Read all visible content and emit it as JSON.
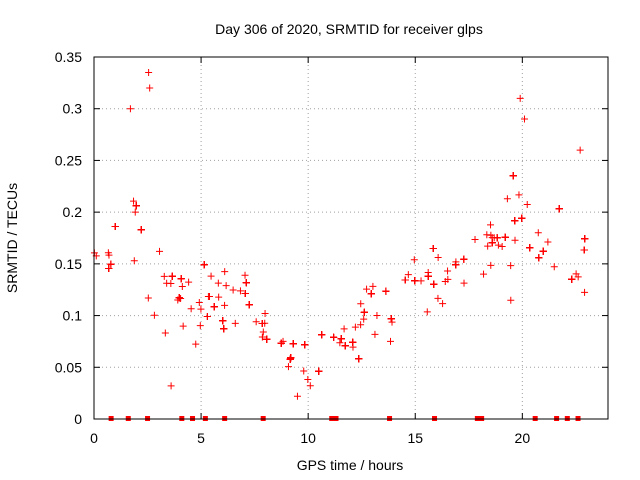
{
  "chart_data": {
    "type": "scatter",
    "title": "Day 306 of 2020, SRMTID for receiver glps",
    "xlabel": "GPS time / hours",
    "ylabel": "SRMTID / TECUs",
    "xlim": [
      0,
      24
    ],
    "ylim": [
      0,
      0.35
    ],
    "xticks": [
      0,
      5,
      10,
      15,
      20
    ],
    "xtick_labels": [
      "0",
      "5",
      "10",
      "15",
      "20"
    ],
    "yticks": [
      0,
      0.05,
      0.1,
      0.15,
      0.2,
      0.25,
      0.3,
      0.35
    ],
    "ytick_labels": [
      "0",
      "0.05",
      "0.1",
      "0.15",
      "0.2",
      "0.25",
      "0.3",
      "0.35"
    ],
    "grid": true,
    "marker": "+",
    "series_color": "#ff0000",
    "envelope": {
      "x": [
        0,
        0.5,
        1,
        1.5,
        2,
        2.5,
        3,
        3.5,
        4,
        4.5,
        5,
        5.5,
        6,
        6.5,
        7,
        7.5,
        8,
        8.5,
        9,
        9.5,
        10,
        10.5,
        11,
        11.5,
        12,
        12.5,
        13,
        13.5,
        14,
        14.5,
        15,
        15.5,
        16,
        16.5,
        17,
        17.5,
        18,
        18.5,
        19,
        19.5,
        20,
        20.5,
        21,
        21.5,
        22,
        22.5,
        23
      ],
      "center": [
        0.16,
        0.15,
        0.16,
        0.18,
        0.17,
        0.15,
        0.14,
        0.12,
        0.12,
        0.11,
        0.11,
        0.11,
        0.12,
        0.12,
        0.12,
        0.1,
        0.08,
        0.07,
        0.06,
        0.055,
        0.05,
        0.06,
        0.07,
        0.075,
        0.08,
        0.09,
        0.1,
        0.1,
        0.11,
        0.12,
        0.14,
        0.13,
        0.13,
        0.14,
        0.15,
        0.15,
        0.16,
        0.16,
        0.17,
        0.18,
        0.19,
        0.17,
        0.15,
        0.15,
        0.15,
        0.14,
        0.15
      ],
      "spread": [
        0.05,
        0.05,
        0.06,
        0.07,
        0.07,
        0.06,
        0.05,
        0.05,
        0.04,
        0.04,
        0.04,
        0.04,
        0.05,
        0.05,
        0.05,
        0.04,
        0.03,
        0.03,
        0.02,
        0.02,
        0.02,
        0.02,
        0.025,
        0.03,
        0.03,
        0.035,
        0.04,
        0.04,
        0.04,
        0.05,
        0.05,
        0.05,
        0.05,
        0.05,
        0.05,
        0.05,
        0.05,
        0.05,
        0.05,
        0.06,
        0.06,
        0.05,
        0.05,
        0.05,
        0.05,
        0.05,
        0.05
      ]
    },
    "notable_points": [
      {
        "x": 2.55,
        "y": 0.335
      },
      {
        "x": 2.6,
        "y": 0.32
      },
      {
        "x": 1.7,
        "y": 0.3
      },
      {
        "x": 19.9,
        "y": 0.31
      },
      {
        "x": 20.1,
        "y": 0.29
      },
      {
        "x": 22.7,
        "y": 0.26
      },
      {
        "x": 9.5,
        "y": 0.022
      },
      {
        "x": 3.6,
        "y": 0.032
      }
    ],
    "zero_markers_x": [
      0.8,
      1.6,
      2.5,
      4.1,
      4.6,
      5.2,
      6.1,
      7.9,
      11.1,
      11.3,
      13.8,
      15.9,
      17.9,
      18.1,
      20.6,
      21.6,
      22.1,
      22.6
    ]
  }
}
